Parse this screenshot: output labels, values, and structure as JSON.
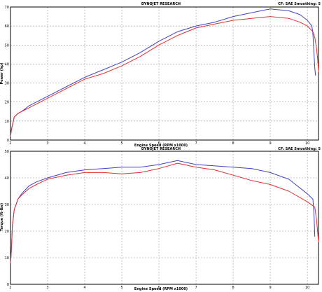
{
  "chart_data": [
    {
      "type": "line",
      "header_title": "DYNOJET RESEARCH",
      "header_right": "CF: SAE  Smoothing: 5",
      "xlabel": "Engine Speed (RPM x1000)",
      "ylabel": "Power (hp)",
      "xlim": [
        2,
        10.3
      ],
      "ylim": [
        0,
        70
      ],
      "xticks": [
        "2",
        "3",
        "4",
        "5",
        "6",
        "7",
        "8",
        "9",
        "10"
      ],
      "yticks": [
        "0",
        "10",
        "20",
        "30",
        "40",
        "50",
        "60",
        "70"
      ],
      "grid": true,
      "series": [
        {
          "color": "#4040c8",
          "x": [
            2.0,
            2.03,
            2.1,
            2.2,
            2.3,
            2.5,
            3.0,
            3.5,
            4.0,
            4.5,
            5.0,
            5.5,
            6.0,
            6.5,
            7.0,
            7.5,
            8.0,
            8.5,
            9.0,
            9.5,
            9.8,
            10.0,
            10.12,
            10.15,
            10.18,
            10.2,
            10.22
          ],
          "y": [
            2,
            6,
            12,
            14,
            15,
            18,
            23,
            28,
            33,
            37,
            41,
            46,
            52,
            57,
            60,
            62,
            65,
            67,
            69,
            68,
            66,
            63,
            60,
            56,
            45,
            38,
            34
          ]
        },
        {
          "color": "#e03030",
          "x": [
            2.0,
            2.03,
            2.1,
            2.2,
            2.3,
            2.5,
            3.0,
            3.5,
            4.0,
            4.5,
            5.0,
            5.5,
            6.0,
            6.5,
            7.0,
            7.5,
            8.0,
            8.5,
            9.0,
            9.5,
            9.8,
            10.0,
            10.15,
            10.2,
            10.25,
            10.28,
            10.3
          ],
          "y": [
            2,
            6,
            12,
            14,
            15,
            17,
            22,
            27,
            32,
            35,
            39,
            44,
            50,
            55,
            59,
            61,
            63,
            64,
            65,
            64,
            62,
            60,
            57,
            54,
            48,
            42,
            36
          ]
        }
      ]
    },
    {
      "type": "line",
      "header_title": "DYNOJET RESEARCH",
      "header_right": "CF: SAE  Smoothing: 5",
      "xlabel": "Engine Speed (RPM x1000)",
      "ylabel": "Torque (ft-lbs)",
      "xlim": [
        2,
        10.3
      ],
      "ylim": [
        0,
        50
      ],
      "xticks": [
        "2",
        "3",
        "4",
        "5",
        "6",
        "7",
        "8",
        "9",
        "10"
      ],
      "yticks": [
        "0",
        "10",
        "20",
        "30",
        "40",
        "50"
      ],
      "grid": true,
      "series": [
        {
          "color": "#4040c8",
          "x": [
            2.0,
            2.02,
            2.05,
            2.1,
            2.2,
            2.3,
            2.5,
            2.7,
            3.0,
            3.5,
            4.0,
            4.5,
            5.0,
            5.5,
            6.0,
            6.5,
            7.0,
            7.5,
            8.0,
            8.5,
            9.0,
            9.5,
            10.0,
            10.15,
            10.18,
            10.2
          ],
          "y": [
            8,
            12,
            22,
            28,
            32,
            34,
            37,
            38.5,
            40,
            42,
            43,
            43.5,
            44,
            44,
            45,
            46.5,
            45,
            44.5,
            44,
            43.5,
            42,
            39.5,
            34,
            32,
            26,
            18
          ]
        },
        {
          "color": "#e03030",
          "x": [
            2.0,
            2.02,
            2.05,
            2.1,
            2.2,
            2.3,
            2.5,
            2.7,
            3.0,
            3.5,
            4.0,
            4.5,
            5.0,
            5.5,
            6.0,
            6.5,
            7.0,
            7.5,
            8.0,
            8.5,
            9.0,
            9.5,
            10.0,
            10.2,
            10.25,
            10.3
          ],
          "y": [
            8,
            12,
            22,
            28,
            32,
            33.5,
            36,
            37.5,
            39.5,
            41,
            42,
            42,
            41.5,
            42,
            43.5,
            45.5,
            44,
            43,
            41,
            39,
            37.5,
            35,
            31,
            29,
            24,
            16
          ]
        }
      ]
    }
  ]
}
